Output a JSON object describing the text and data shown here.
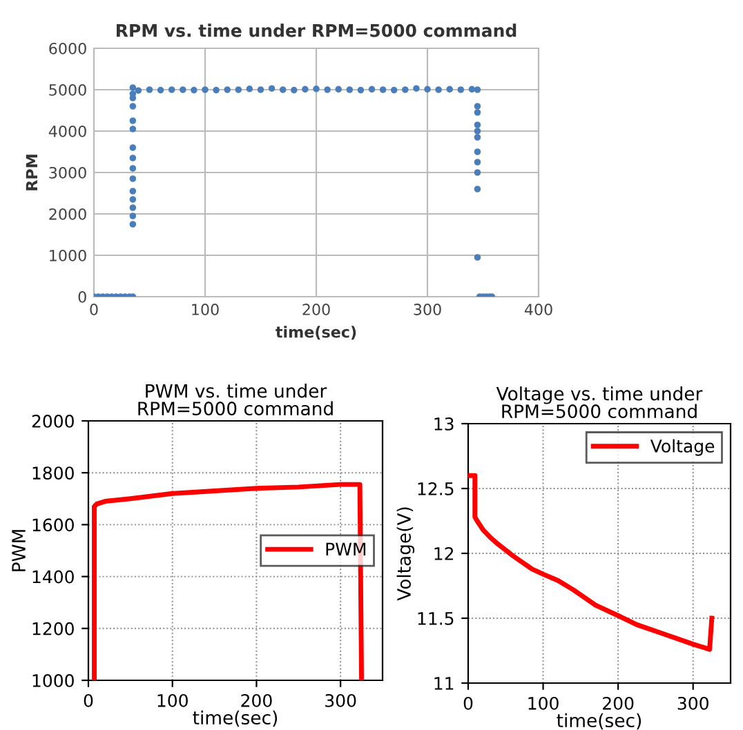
{
  "chart_data": [
    {
      "type": "scatter",
      "title": "RPM vs. time under RPM=5000 command",
      "xlabel": "time(sec)",
      "ylabel": "RPM",
      "xlim": [
        0,
        400
      ],
      "ylim": [
        0,
        6000
      ],
      "xticks": [
        0,
        100,
        200,
        300,
        400
      ],
      "yticks": [
        0,
        1000,
        2000,
        3000,
        4000,
        5000,
        6000
      ],
      "grid": true,
      "marker": "circle",
      "series": [
        {
          "color": "#4a7ebb",
          "x": [
            0,
            4,
            8,
            12,
            16,
            20,
            24,
            28,
            32,
            35,
            35,
            35,
            35,
            35,
            35,
            35,
            35,
            35,
            35,
            35,
            35,
            35,
            35,
            35,
            35,
            40,
            50,
            60,
            70,
            80,
            90,
            100,
            110,
            120,
            130,
            140,
            150,
            160,
            170,
            180,
            190,
            200,
            210,
            220,
            230,
            240,
            250,
            260,
            270,
            280,
            290,
            300,
            310,
            320,
            330,
            340,
            345,
            345,
            345,
            345,
            345,
            345,
            345,
            345,
            345,
            345,
            345,
            347,
            350,
            353,
            356,
            358
          ],
          "values": [
            0,
            0,
            0,
            0,
            0,
            0,
            0,
            0,
            0,
            0,
            1750,
            1950,
            2150,
            2350,
            2550,
            2850,
            3100,
            3350,
            3600,
            4050,
            4250,
            4600,
            4800,
            4900,
            5050,
            4980,
            5000,
            4990,
            5000,
            5000,
            4990,
            5000,
            4990,
            5000,
            5000,
            5020,
            5000,
            5030,
            5000,
            4990,
            5010,
            5020,
            5000,
            5010,
            5000,
            4990,
            5010,
            5000,
            4990,
            5000,
            5030,
            5010,
            5000,
            5010,
            5000,
            5010,
            5000,
            4600,
            4450,
            4150,
            4000,
            3850,
            3500,
            3250,
            3000,
            2600,
            950,
            0,
            0,
            0,
            0,
            0
          ]
        }
      ]
    },
    {
      "type": "line",
      "title": "PWM vs. time under\nRPM=5000 command",
      "xlabel": "time(sec)",
      "ylabel": "PWM",
      "xlim": [
        0,
        350
      ],
      "ylim": [
        1000,
        2000
      ],
      "xticks": [
        0,
        100,
        200,
        300
      ],
      "yticks": [
        1000,
        1200,
        1400,
        1600,
        1800,
        2000
      ],
      "grid": true,
      "legend": "right",
      "line_style": "solid",
      "series": [
        {
          "name": "PWM",
          "color": "#ff0000",
          "x": [
            7,
            7,
            10,
            20,
            50,
            100,
            150,
            200,
            250,
            300,
            323,
            325
          ],
          "values": [
            1000,
            1670,
            1680,
            1690,
            1700,
            1720,
            1730,
            1740,
            1745,
            1755,
            1755,
            1000
          ]
        }
      ]
    },
    {
      "type": "line",
      "title": "Voltage vs. time under\nRPM=5000 command",
      "xlabel": "time(sec)",
      "ylabel": "Voltage(V)",
      "xlim": [
        0,
        350
      ],
      "ylim": [
        11,
        13
      ],
      "xticks": [
        0,
        100,
        200,
        300
      ],
      "yticks": [
        11,
        11.5,
        12,
        12.5,
        13
      ],
      "grid": true,
      "legend": "top right",
      "line_style": "solid",
      "series": [
        {
          "name": "Voltage",
          "color": "#ff0000",
          "x": [
            2,
            9,
            9,
            12,
            20,
            30,
            40,
            60,
            85,
            100,
            120,
            140,
            170,
            200,
            225,
            260,
            300,
            322,
            325
          ],
          "values": [
            12.6,
            12.6,
            12.28,
            12.25,
            12.18,
            12.12,
            12.07,
            11.98,
            11.88,
            11.84,
            11.79,
            11.72,
            11.6,
            11.52,
            11.45,
            11.38,
            11.3,
            11.26,
            11.5
          ]
        }
      ]
    }
  ]
}
